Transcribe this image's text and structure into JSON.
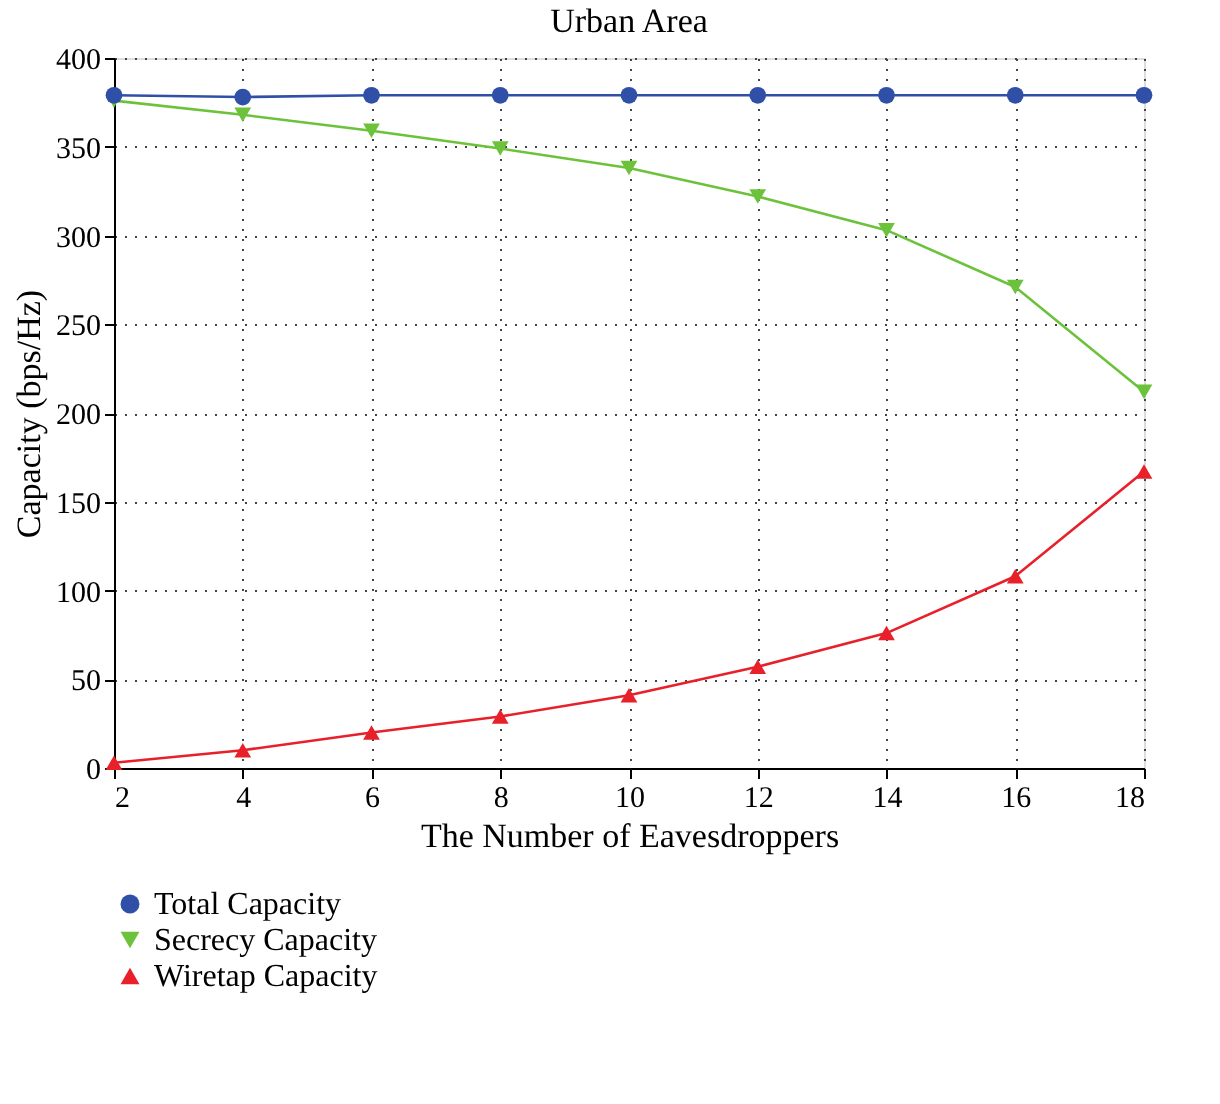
{
  "chart_data": {
    "type": "line",
    "title": "Urban Area",
    "xlabel": "The Number of Eavesdroppers",
    "ylabel": "Capacity (bps/Hz)",
    "x": [
      2,
      4,
      6,
      8,
      10,
      12,
      14,
      16,
      18
    ],
    "series": [
      {
        "name": "Total Capacity",
        "color": "#3050a8",
        "marker": "circle",
        "values": [
          379,
          378,
          379,
          379,
          379,
          379,
          379,
          379,
          379
        ]
      },
      {
        "name": "Secrecy Capacity",
        "color": "#6cc23a",
        "marker": "triangle-down",
        "values": [
          376,
          368,
          359,
          349,
          338,
          322,
          303,
          271,
          212
        ]
      },
      {
        "name": "Wiretap Capacity",
        "color": "#e8202a",
        "marker": "triangle",
        "values": [
          3,
          10,
          20,
          29,
          41,
          57,
          76,
          108,
          167
        ]
      }
    ],
    "xlim": [
      2,
      18
    ],
    "xticks": [
      2,
      4,
      6,
      8,
      10,
      12,
      14,
      16,
      18
    ],
    "ylim": [
      0,
      400
    ],
    "yticks": [
      0,
      50,
      100,
      150,
      200,
      250,
      300,
      350,
      400
    ],
    "grid": true,
    "legend": "bottom left",
    "line_style": "solid"
  }
}
